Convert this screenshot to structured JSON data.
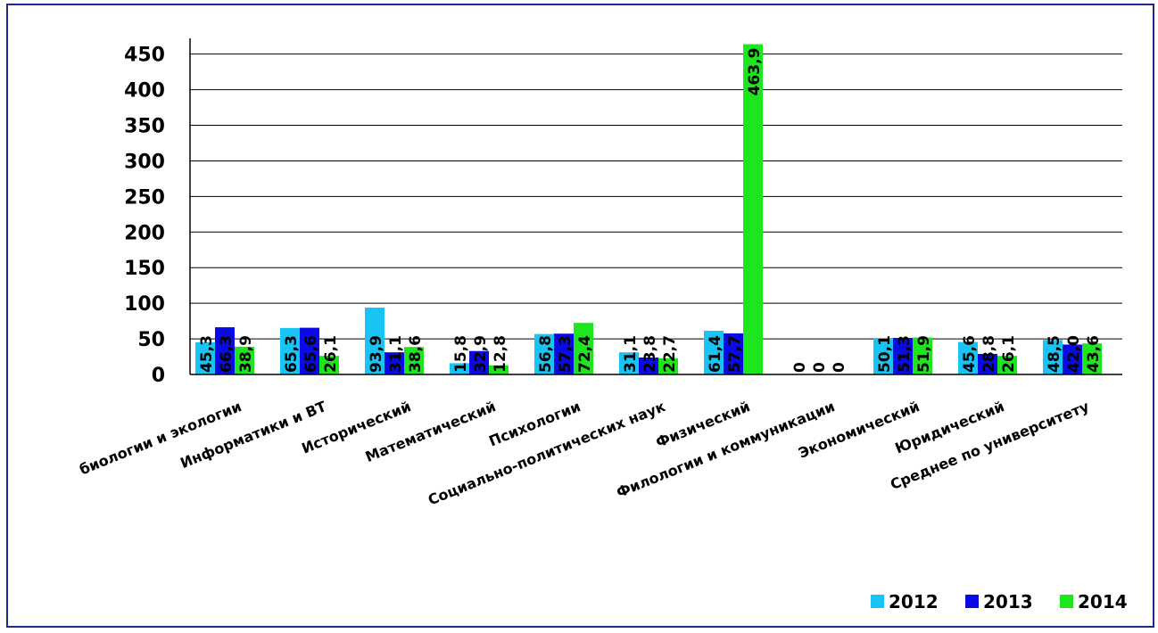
{
  "chart_data": {
    "type": "bar",
    "title": "",
    "xlabel": "",
    "ylabel": "",
    "ylim": [
      0,
      475
    ],
    "yticks": [
      "0",
      "50",
      "100",
      "150",
      "200",
      "250",
      "300",
      "350",
      "400",
      "450"
    ],
    "grid": true,
    "legend_position": "bottom-right",
    "categories": [
      "биологии и экологии",
      "Информатики и ВТ",
      "Исторический",
      "Математический",
      "Психологии",
      "Социально-политических наук",
      "Физический",
      "Филологии и коммуникации",
      "Экономический",
      "Юридический",
      "Среднее по университету"
    ],
    "series": [
      {
        "name": "2012",
        "color": "#19c3f3",
        "values": [
          45.3,
          65.3,
          93.9,
          15.8,
          56.8,
          31.1,
          61.4,
          0,
          50.1,
          45.6,
          48.5
        ],
        "labels": [
          "45,3",
          "65,3",
          "93,9",
          "15,8",
          "56,8",
          "31,1",
          "61,4",
          "0",
          "50,1",
          "45,6",
          "48,5"
        ]
      },
      {
        "name": "2013",
        "color": "#0a0ae6",
        "values": [
          66.3,
          65.6,
          31.1,
          32.9,
          57.3,
          23.8,
          57.7,
          0,
          51.3,
          28.8,
          42.0
        ],
        "labels": [
          "66,3",
          "65,6",
          "31,1",
          "32,9",
          "57,3",
          "23,8",
          "57,7",
          "0",
          "51,3",
          "28,8",
          "42,0"
        ]
      },
      {
        "name": "2014",
        "color": "#1ee61e",
        "values": [
          38.9,
          26.1,
          38.6,
          12.8,
          72.4,
          22.7,
          463.9,
          0,
          51.9,
          26.1,
          43.6
        ],
        "labels": [
          "38,9",
          "26,1",
          "38,6",
          "12,8",
          "72,4",
          "22,7",
          "463,9",
          "0",
          "51,9",
          "26,1",
          "43,6"
        ]
      }
    ]
  }
}
